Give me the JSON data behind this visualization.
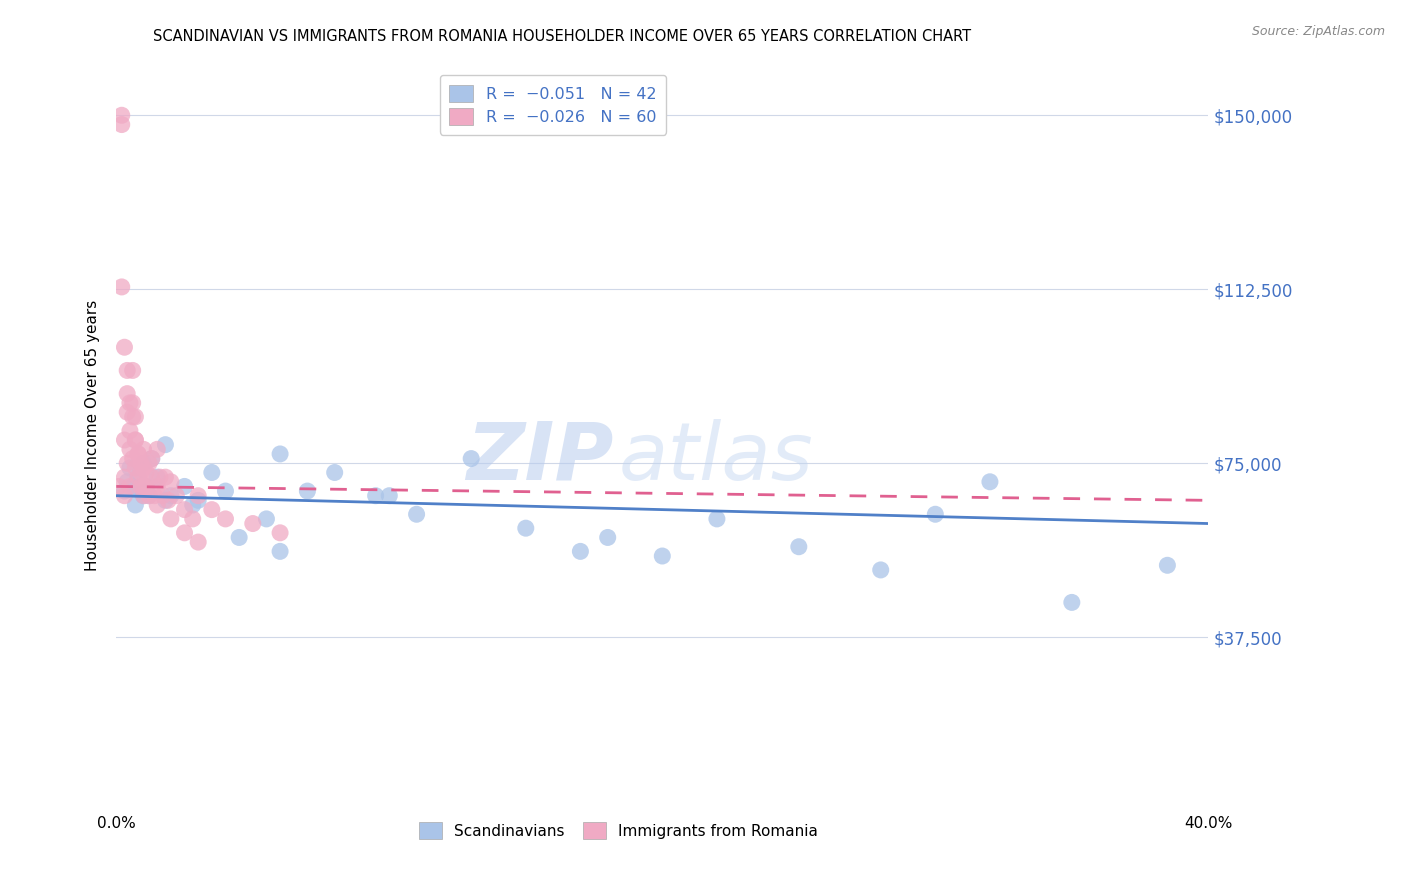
{
  "title": "SCANDINAVIAN VS IMMIGRANTS FROM ROMANIA HOUSEHOLDER INCOME OVER 65 YEARS CORRELATION CHART",
  "source": "Source: ZipAtlas.com",
  "ylabel": "Householder Income Over 65 years",
  "ytick_vals": [
    37500,
    75000,
    112500,
    150000
  ],
  "ytick_labels": [
    "$37,500",
    "$75,000",
    "$112,500",
    "$150,000"
  ],
  "xlim": [
    0.0,
    0.4
  ],
  "ylim": [
    0,
    162000
  ],
  "legend_label1": "Scandinavians",
  "legend_label2": "Immigrants from Romania",
  "color_blue": "#aac4e8",
  "color_pink": "#f0aac4",
  "color_blue_line": "#5080c8",
  "color_pink_line": "#e06090",
  "watermark_zip": "ZIP",
  "watermark_atlas": "atlas",
  "scan_x": [
    0.003,
    0.004,
    0.005,
    0.006,
    0.007,
    0.008,
    0.009,
    0.01,
    0.011,
    0.012,
    0.013,
    0.015,
    0.018,
    0.02,
    0.025,
    0.03,
    0.035,
    0.04,
    0.055,
    0.06,
    0.07,
    0.08,
    0.095,
    0.11,
    0.13,
    0.15,
    0.18,
    0.2,
    0.22,
    0.25,
    0.28,
    0.3,
    0.32,
    0.35,
    0.385,
    0.01,
    0.018,
    0.028,
    0.045,
    0.06,
    0.1,
    0.17
  ],
  "scan_y": [
    69000,
    71000,
    74000,
    70000,
    66000,
    72000,
    69000,
    75000,
    70000,
    68000,
    76000,
    72000,
    79000,
    68000,
    70000,
    67000,
    73000,
    69000,
    63000,
    77000,
    69000,
    73000,
    68000,
    64000,
    76000,
    61000,
    59000,
    55000,
    63000,
    57000,
    52000,
    64000,
    71000,
    45000,
    53000,
    68000,
    67000,
    66000,
    59000,
    56000,
    68000,
    56000
  ],
  "rom_x": [
    0.001,
    0.002,
    0.002,
    0.003,
    0.003,
    0.003,
    0.004,
    0.004,
    0.004,
    0.005,
    0.005,
    0.005,
    0.006,
    0.006,
    0.006,
    0.007,
    0.007,
    0.007,
    0.008,
    0.008,
    0.009,
    0.009,
    0.01,
    0.01,
    0.01,
    0.011,
    0.011,
    0.012,
    0.012,
    0.013,
    0.013,
    0.014,
    0.015,
    0.015,
    0.016,
    0.017,
    0.018,
    0.019,
    0.02,
    0.022,
    0.025,
    0.028,
    0.03,
    0.035,
    0.04,
    0.05,
    0.06,
    0.002,
    0.003,
    0.004,
    0.005,
    0.006,
    0.007,
    0.008,
    0.009,
    0.01,
    0.015,
    0.02,
    0.025,
    0.03
  ],
  "rom_y": [
    70000,
    148000,
    150000,
    80000,
    72000,
    68000,
    90000,
    86000,
    75000,
    82000,
    78000,
    70000,
    95000,
    88000,
    76000,
    80000,
    85000,
    74000,
    72000,
    77000,
    75000,
    70000,
    78000,
    74000,
    68000,
    73000,
    70000,
    75000,
    68000,
    76000,
    72000,
    68000,
    78000,
    70000,
    72000,
    68000,
    72000,
    67000,
    71000,
    68000,
    65000,
    63000,
    68000,
    65000,
    63000,
    62000,
    60000,
    113000,
    100000,
    95000,
    88000,
    85000,
    80000,
    77000,
    73000,
    70000,
    66000,
    63000,
    60000,
    58000
  ]
}
